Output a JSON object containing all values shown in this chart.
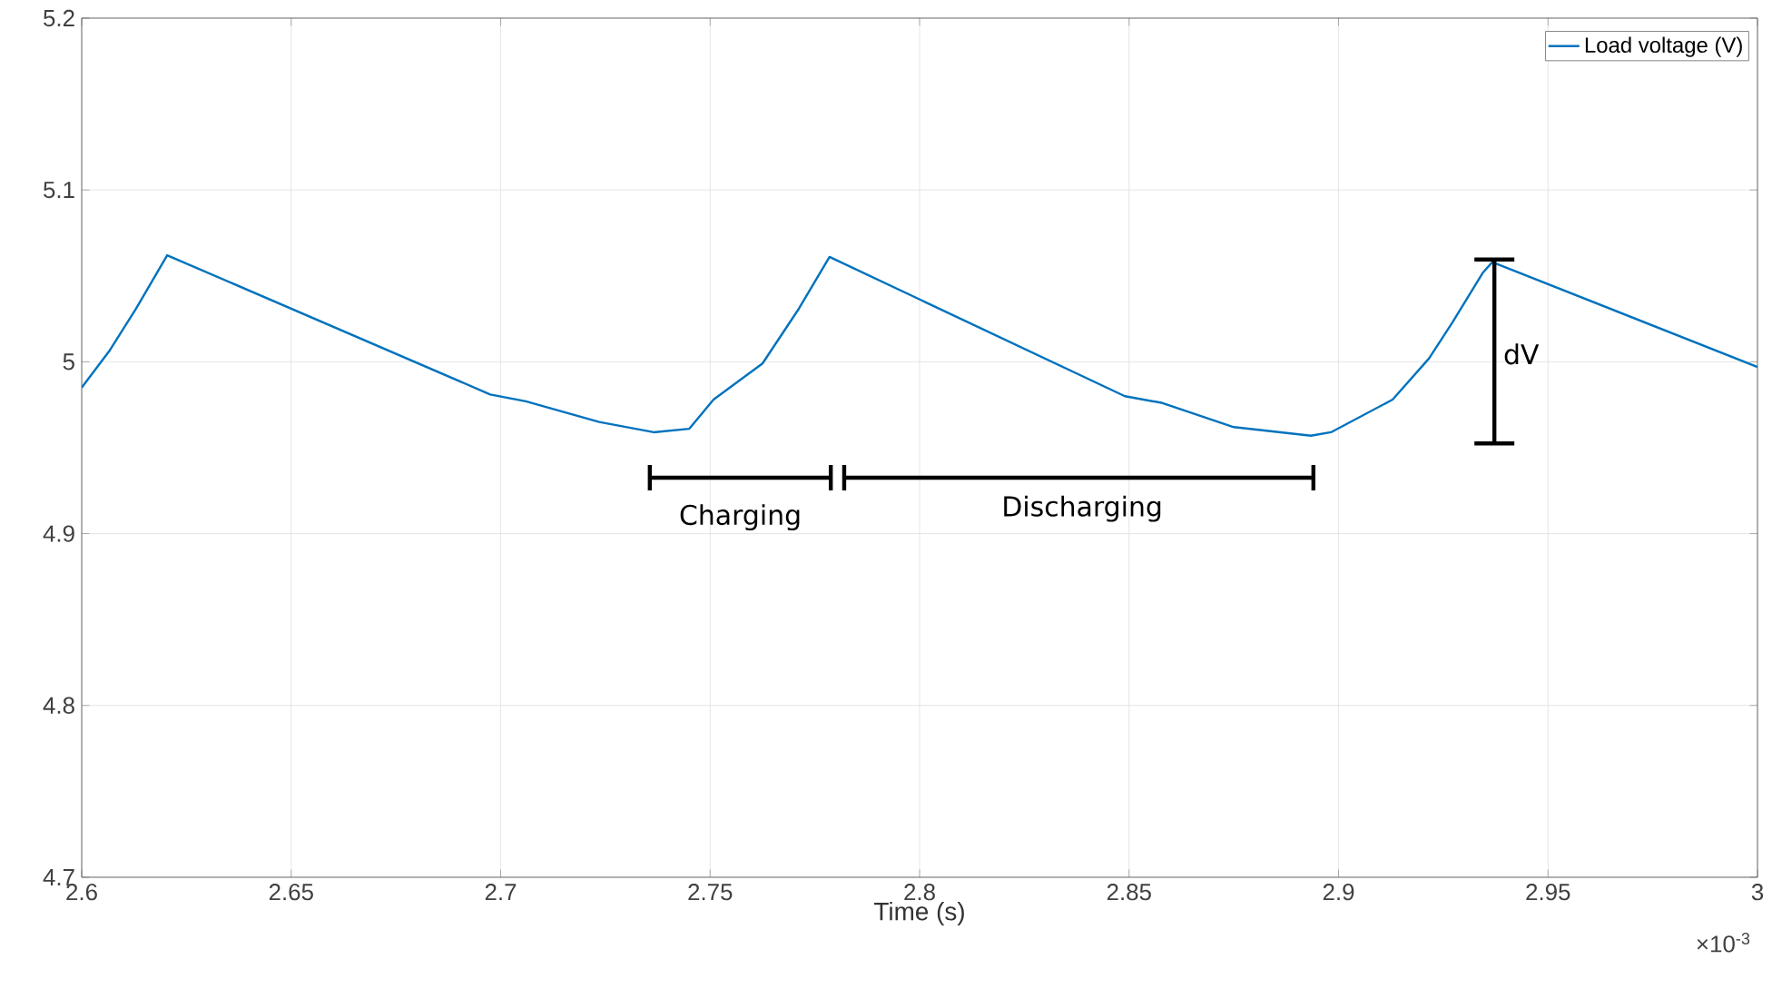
{
  "chart_data": {
    "type": "line",
    "xlabel": "Time (s)",
    "series": [
      {
        "name": "Load voltage (V)",
        "color": "#0072bd",
        "x": [
          2.6,
          2.6065,
          2.613,
          2.6204,
          2.6975,
          2.706,
          2.7235,
          2.7365,
          2.745,
          2.7508,
          2.7625,
          2.7712,
          2.7785,
          2.849,
          2.858,
          2.875,
          2.8934,
          2.8982,
          2.9129,
          2.9216,
          2.9272,
          2.9345,
          2.9367,
          3.0
        ],
        "values": [
          4.985,
          5.006,
          5.031,
          5.062,
          4.981,
          4.977,
          4.965,
          4.959,
          4.961,
          4.978,
          4.999,
          5.031,
          5.061,
          4.98,
          4.976,
          4.962,
          4.957,
          4.959,
          4.978,
          5.002,
          5.023,
          5.052,
          5.058,
          4.997
        ]
      }
    ],
    "xlim": [
      2.6,
      3
    ],
    "ylim": [
      4.7,
      5.2
    ],
    "xticks": [
      2.6,
      2.65,
      2.7,
      2.75,
      2.8,
      2.85,
      2.9,
      2.95,
      3
    ],
    "yticks": [
      4.7,
      4.8,
      4.9,
      5,
      5.1,
      5.2
    ],
    "grid": true,
    "legend": "top right",
    "marker": "none",
    "line_style": "solid",
    "annotations": [
      "Charging",
      "Discharging",
      "dV",
      "×10$^{-3}$"
    ]
  }
}
